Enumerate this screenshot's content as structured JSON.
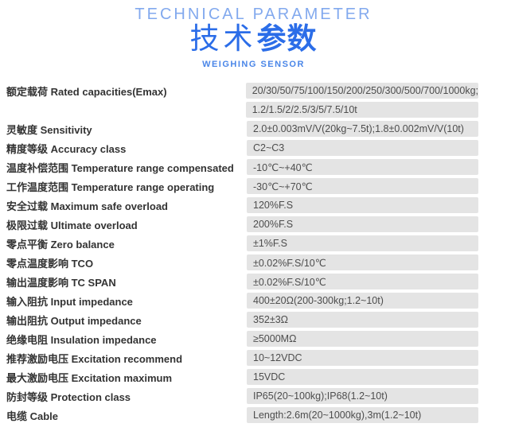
{
  "header": {
    "title_en": "TECHNICAL PARAMETER",
    "title_cn_light": "技术",
    "title_cn_bold": "参数",
    "subtitle": "WEIGHING SENSOR"
  },
  "colors": {
    "title_en_blue": "#82a9ee",
    "title_cn_blue": "#2b6de8",
    "subtitle_blue": "#4a86e8",
    "value_band_gray": "#e4e4e4",
    "label_text": "#333333",
    "value_text": "#4d4d4d"
  },
  "table": {
    "rows": [
      {
        "label": "额定载荷 Rated capacities(Emax)",
        "values": [
          "20/30/50/75/100/150/200/250/300/500/700/1000kg;",
          "1.2/1.5/2/2.5/3/5/7.5/10t"
        ]
      },
      {
        "label": "灵敏度 Sensitivity",
        "values": [
          "2.0±0.003mV/V(20kg~7.5t);1.8±0.002mV/V(10t)"
        ]
      },
      {
        "label": "精度等级 Accuracy class",
        "values": [
          "C2~C3"
        ]
      },
      {
        "label": "温度补偿范围 Temperature range compensated",
        "values": [
          "-10℃~+40℃"
        ]
      },
      {
        "label": "工作温度范围 Temperature range operating",
        "values": [
          "-30℃~+70℃"
        ]
      },
      {
        "label": "安全过载 Maximum safe overload",
        "values": [
          "120%F.S"
        ]
      },
      {
        "label": "极限过载 Ultimate overload",
        "values": [
          "200%F.S"
        ]
      },
      {
        "label": "零点平衡 Zero balance",
        "values": [
          "±1%F.S"
        ]
      },
      {
        "label": "零点温度影响 TCO",
        "values": [
          "±0.02%F.S/10℃"
        ]
      },
      {
        "label": "输出温度影响 TC SPAN",
        "values": [
          "±0.02%F.S/10℃"
        ]
      },
      {
        "label": "输入阻抗 Input impedance",
        "values": [
          "400±20Ω(200-300kg;1.2~10t)"
        ]
      },
      {
        "label": "输出阻抗 Output impedance",
        "values": [
          "352±3Ω"
        ]
      },
      {
        "label": "绝缘电阻 Insulation impedance",
        "values": [
          "≥5000MΩ"
        ]
      },
      {
        "label": "推荐激励电压 Excitation recommend",
        "values": [
          "10~12VDC"
        ]
      },
      {
        "label": "最大激励电压 Excitation maximum",
        "values": [
          "15VDC"
        ]
      },
      {
        "label": "防封等级 Protection class",
        "values": [
          "IP65(20~100kg);IP68(1.2~10t)"
        ]
      },
      {
        "label": "电缆 Cable",
        "values": [
          "Length:2.6m(20~1000kg),3m(1.2~10t)"
        ]
      }
    ]
  }
}
